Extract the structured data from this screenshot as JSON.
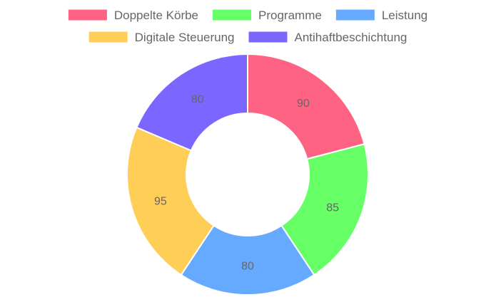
{
  "chart_data": {
    "type": "doughnut",
    "categories": [
      "Doppelte Körbe",
      "Programme",
      "Leistung",
      "Digitale Steuerung",
      "Antihaftbeschichtung"
    ],
    "values": [
      90,
      85,
      80,
      95,
      80
    ],
    "colors": [
      "#ff6384",
      "#66ff66",
      "#66aaff",
      "#ffce56",
      "#7b66ff"
    ],
    "data_labels": [
      "90",
      "85",
      "80",
      "95",
      "80"
    ],
    "legend_position": "top",
    "start_angle": "top",
    "direction": "clockwise"
  }
}
